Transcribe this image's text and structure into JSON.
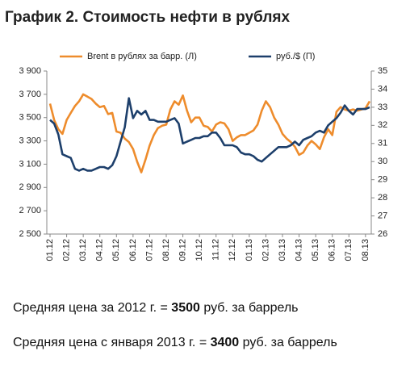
{
  "chart_data": {
    "type": "line",
    "title": "График 2. Стоимость нефти в рублях",
    "categories": [
      "01.12",
      null,
      null,
      null,
      "02.12",
      null,
      null,
      null,
      "03.12",
      null,
      null,
      null,
      "04.12",
      null,
      null,
      null,
      "05.12",
      null,
      null,
      null,
      "06.12",
      null,
      null,
      null,
      "07.12",
      null,
      null,
      null,
      "08.12",
      null,
      null,
      null,
      "09.12",
      null,
      null,
      null,
      "10.12",
      null,
      null,
      null,
      "11.12",
      null,
      null,
      null,
      "12.12",
      null,
      null,
      null,
      "01.13",
      null,
      null,
      null,
      "02.13",
      null,
      null,
      null,
      "03.13",
      null,
      null,
      null,
      "04.13",
      null,
      null,
      null,
      "05.13",
      null,
      null,
      null,
      "06.13",
      null,
      null,
      null,
      "07.13",
      null,
      null,
      null,
      "08.13",
      null
    ],
    "series": [
      {
        "name": "Brent в рублях за барр. (Л)",
        "color": "#ee8c2c",
        "axis": "y",
        "values": [
          3620,
          3480,
          3400,
          3360,
          3480,
          3540,
          3600,
          3640,
          3700,
          3680,
          3660,
          3620,
          3590,
          3600,
          3530,
          3540,
          3380,
          3370,
          3320,
          3290,
          3230,
          3120,
          3030,
          3140,
          3260,
          3350,
          3410,
          3430,
          3440,
          3570,
          3640,
          3610,
          3690,
          3560,
          3460,
          3500,
          3500,
          3430,
          3420,
          3380,
          3440,
          3460,
          3450,
          3400,
          3300,
          3330,
          3350,
          3350,
          3370,
          3390,
          3440,
          3560,
          3640,
          3590,
          3500,
          3440,
          3360,
          3320,
          3290,
          3250,
          3180,
          3200,
          3260,
          3300,
          3270,
          3230,
          3330,
          3400,
          3350,
          3550,
          3590,
          3570,
          3560,
          3570,
          3560,
          3570,
          3580,
          3640
        ]
      },
      {
        "name": "руб./$ (П)",
        "color": "#1d3f6b",
        "axis": "y2",
        "values": [
          32.3,
          32.1,
          31.5,
          30.4,
          30.3,
          30.2,
          29.6,
          29.5,
          29.6,
          29.5,
          29.5,
          29.6,
          29.7,
          29.7,
          29.6,
          29.8,
          30.3,
          31.1,
          31.9,
          33.5,
          32.4,
          32.8,
          32.6,
          32.8,
          32.3,
          32.3,
          32.2,
          32.2,
          32.2,
          32.3,
          32.4,
          32.1,
          31.0,
          31.1,
          31.2,
          31.3,
          31.3,
          31.4,
          31.4,
          31.6,
          31.6,
          31.3,
          30.9,
          30.9,
          30.9,
          30.8,
          30.5,
          30.4,
          30.4,
          30.3,
          30.1,
          30.0,
          30.2,
          30.4,
          30.6,
          30.8,
          30.8,
          30.8,
          30.9,
          31.1,
          30.9,
          31.2,
          31.3,
          31.4,
          31.6,
          31.7,
          31.6,
          32.0,
          32.2,
          32.4,
          32.7,
          33.1,
          32.8,
          32.6,
          32.9,
          32.9,
          32.9,
          33.0
        ]
      }
    ],
    "ylim": [
      2500,
      3900
    ],
    "yticks": [
      {
        "value": 2500,
        "label": "2 500"
      },
      {
        "value": 2700,
        "label": "2 700"
      },
      {
        "value": 2900,
        "label": "2 900"
      },
      {
        "value": 3100,
        "label": "3 100"
      },
      {
        "value": 3300,
        "label": "3 300"
      },
      {
        "value": 3500,
        "label": "3 500"
      },
      {
        "value": 3700,
        "label": "3 700"
      },
      {
        "value": 3900,
        "label": "3 900"
      }
    ],
    "y2lim": [
      26,
      35
    ],
    "y2ticks": [
      26,
      27,
      28,
      29,
      30,
      31,
      32,
      33,
      34,
      35
    ],
    "legend": "top",
    "grid": false
  },
  "notes": [
    {
      "before": "Средняя цена за 2012 г. =",
      "value": "3500",
      "after": "руб. за баррель"
    },
    {
      "before": "Средняя цена с января 2013 г. =",
      "value": "3400",
      "after": "руб. за баррель"
    }
  ]
}
